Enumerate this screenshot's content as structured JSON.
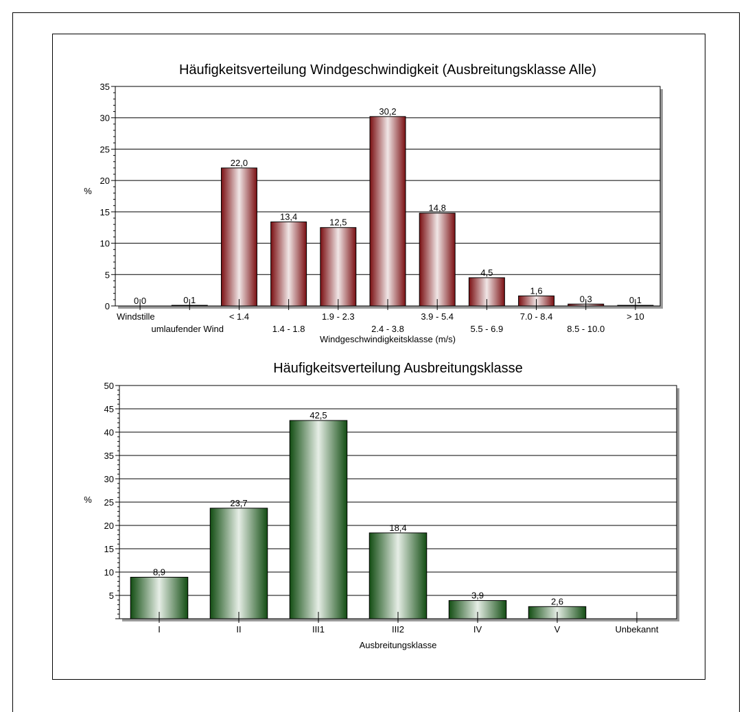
{
  "chart_data": [
    {
      "type": "bar",
      "title": "Häufigkeitsverteilung Windgeschwindigkeit (Ausbreitungsklasse Alle)",
      "xlabel": "Windgeschwindigkeitsklasse (m/s)",
      "ylabel": "%",
      "ylim": [
        0,
        35
      ],
      "yticks": [
        "0",
        "5",
        "10",
        "15",
        "20",
        "25",
        "30",
        "35"
      ],
      "grid": true,
      "categories": [
        "Windstille",
        "umlaufender Wind",
        "< 1.4",
        "1.4 - 1.8",
        "1.9 - 2.3",
        "2.4 - 3.8",
        "3.9 - 5.4",
        "5.5 - 6.9",
        "7.0 - 8.4",
        "8.5 - 10.0",
        "> 10"
      ],
      "values": [
        0.0,
        0.1,
        22.0,
        13.4,
        12.5,
        30.2,
        14.8,
        4.5,
        1.6,
        0.3,
        0.1
      ],
      "value_labels": [
        "0,0",
        "0,1",
        "22,0",
        "13,4",
        "12,5",
        "30,2",
        "14,8",
        "4,5",
        "1,6",
        "0,3",
        "0,1"
      ],
      "color": "#7a0f12",
      "highlight": "#f0e6e6"
    },
    {
      "type": "bar",
      "title": "Häufigkeitsverteilung Ausbreitungsklasse",
      "xlabel": "Ausbreitungsklasse",
      "ylabel": "%",
      "ylim": [
        0,
        50
      ],
      "yticks": [
        "",
        "5",
        "10",
        "15",
        "20",
        "25",
        "30",
        "35",
        "40",
        "45",
        "50"
      ],
      "grid": true,
      "categories": [
        "I",
        "II",
        "III1",
        "III2",
        "IV",
        "V",
        "Unbekannt"
      ],
      "values": [
        8.9,
        23.7,
        42.5,
        18.4,
        3.9,
        2.6,
        0
      ],
      "value_labels": [
        "8,9",
        "23,7",
        "42,5",
        "18,4",
        "3,9",
        "2,6",
        ""
      ],
      "color": "#134d13",
      "highlight": "#e6eee6"
    }
  ]
}
